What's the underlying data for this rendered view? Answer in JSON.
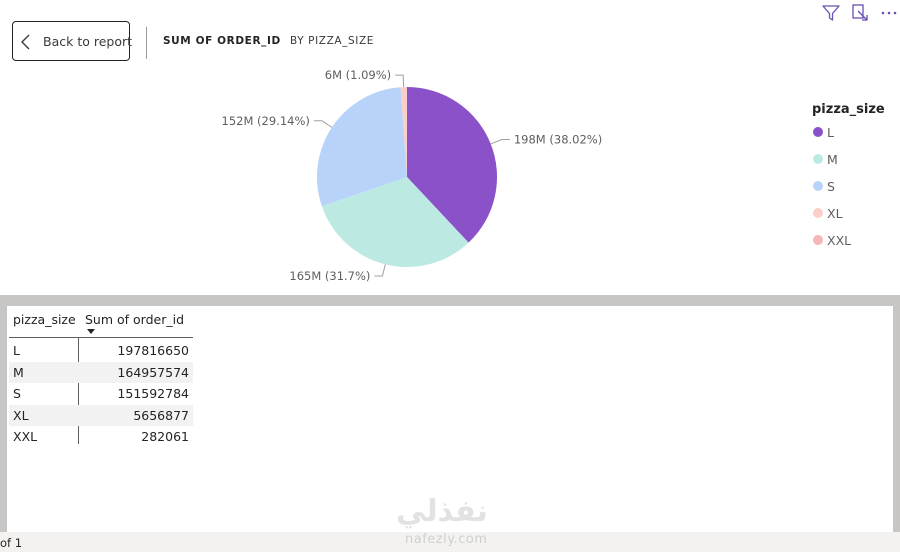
{
  "header": {
    "back_label": "Back to report",
    "title": "SUM OF ORDER_ID",
    "subtitle": "BY PIZZA_SIZE"
  },
  "toolbar": {
    "icons": [
      "filter-icon",
      "focus-mode-icon",
      "more-options-icon"
    ]
  },
  "chart_data": {
    "type": "pie",
    "categories": [
      "L",
      "M",
      "S",
      "XL",
      "XXL"
    ],
    "values": [
      197816650,
      164957574,
      151592784,
      5656877,
      282061
    ],
    "data_labels": [
      "198M (38.02%)",
      "165M (31.7%)",
      "152M (29.14%)",
      "6M (1.09%)",
      ""
    ],
    "colors": [
      "#8a51c9",
      "#bde9e3",
      "#b7d3fa",
      "#fbcfc8",
      "#f5b6b6"
    ],
    "legend_title": "pizza_size",
    "legend_position": "right"
  },
  "table": {
    "columns": [
      "pizza_size",
      "Sum of order_id"
    ],
    "rows": [
      [
        "L",
        "197816650"
      ],
      [
        "M",
        "164957574"
      ],
      [
        "S",
        "151592784"
      ],
      [
        "XL",
        "5656877"
      ],
      [
        "XXL",
        "282061"
      ]
    ]
  },
  "status": {
    "page": "of 1"
  },
  "watermark": {
    "logo": "نفذلي",
    "url": "nafezly.com"
  }
}
